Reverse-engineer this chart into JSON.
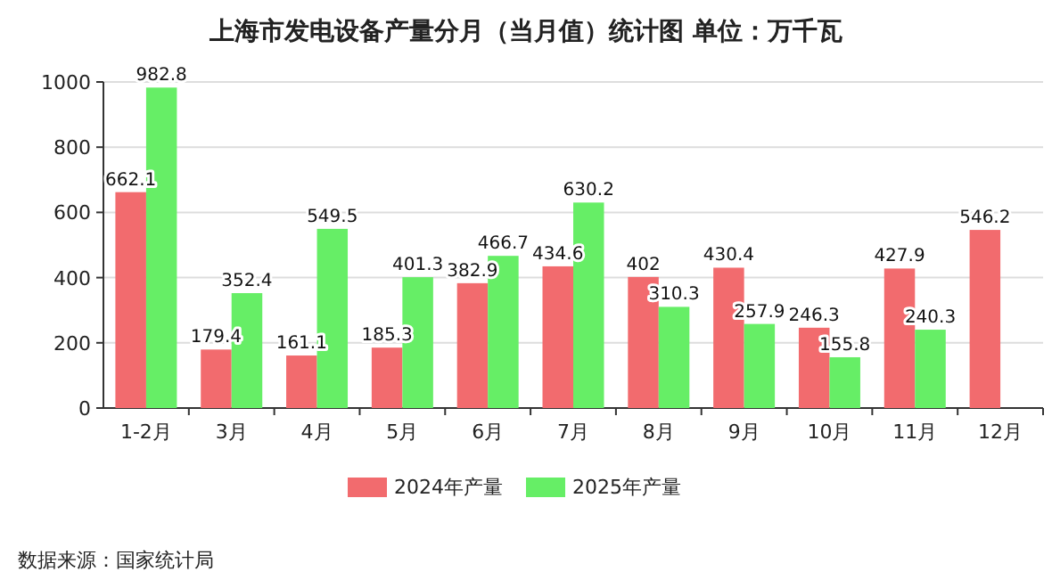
{
  "chart_data": {
    "type": "bar",
    "title": "上海市发电设备产量分月（当月值）统计图 单位：万千瓦",
    "categories": [
      "1-2月",
      "3月",
      "4月",
      "5月",
      "6月",
      "7月",
      "8月",
      "9月",
      "10月",
      "11月",
      "12月"
    ],
    "series": [
      {
        "name": "2024年产量",
        "color": "#f26b6e",
        "values": [
          662.1,
          179.4,
          161.1,
          185.3,
          382.9,
          434.6,
          402,
          430.4,
          246.3,
          427.9,
          546.2
        ]
      },
      {
        "name": "2025年产量",
        "color": "#66ee66",
        "values": [
          982.8,
          352.4,
          549.5,
          401.3,
          466.7,
          630.2,
          310.3,
          257.9,
          155.8,
          240.3,
          null
        ]
      }
    ],
    "ylim": [
      0,
      1000
    ],
    "yticks": [
      0,
      200,
      400,
      600,
      800,
      1000
    ],
    "grid": "y",
    "legend": "bottom",
    "data_labels": true,
    "annotations": [
      "数据来源：国家统计局"
    ]
  }
}
